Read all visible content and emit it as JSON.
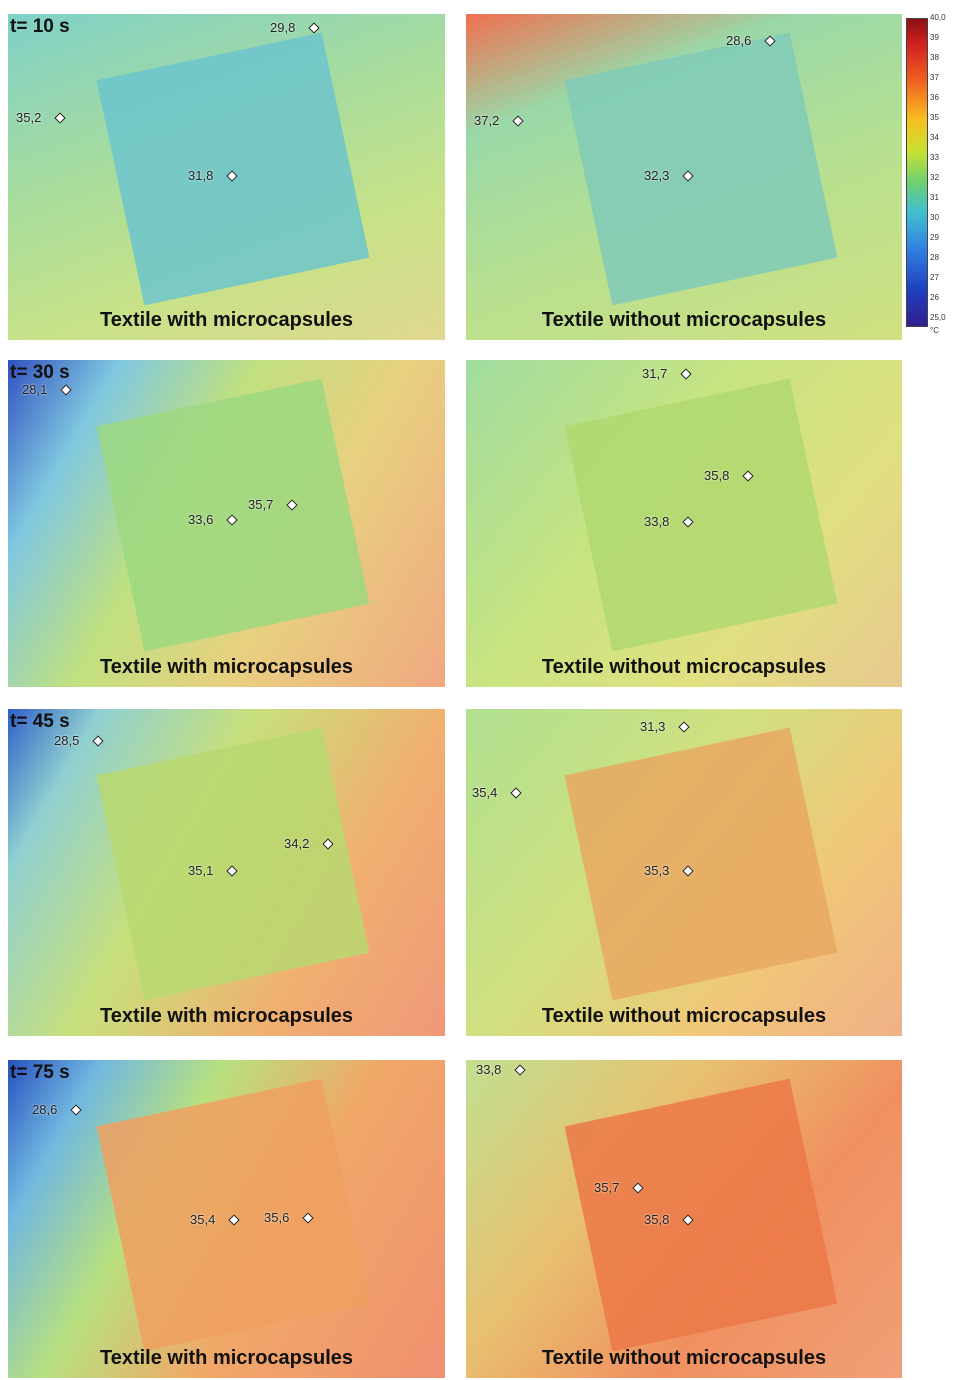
{
  "colorbar": {
    "ticks": [
      "40,0",
      "39",
      "38",
      "37",
      "36",
      "35",
      "34",
      "33",
      "32",
      "31",
      "30",
      "29",
      "28",
      "27",
      "26",
      "25,0"
    ],
    "unit": "°C"
  },
  "panels": [
    {
      "time": "t= 10 s",
      "left": {
        "caption": "Textile with microcapsules",
        "points": [
          "29,8",
          "35,2",
          "31,8"
        ]
      },
      "right": {
        "caption": "Textile without microcapsules",
        "points": [
          "28,6",
          "37,2",
          "32,3"
        ]
      }
    },
    {
      "time": "t= 30 s",
      "left": {
        "caption": "Textile with microcapsules",
        "points": [
          "28,1",
          "33,6",
          "35,7"
        ]
      },
      "right": {
        "caption": "Textile without microcapsules",
        "points": [
          "31,7",
          "35,8",
          "33,8"
        ]
      }
    },
    {
      "time": "t= 45 s",
      "left": {
        "caption": "Textile with microcapsules",
        "points": [
          "28,5",
          "35,1",
          "34,2"
        ]
      },
      "right": {
        "caption": "Textile without microcapsules",
        "points": [
          "31,3",
          "35,4",
          "35,3"
        ]
      }
    },
    {
      "time": "t= 75 s",
      "left": {
        "caption": "Textile with microcapsules",
        "points": [
          "28,6",
          "35,4",
          "35,6"
        ]
      },
      "right": {
        "caption": "Textile without microcapsules",
        "points": [
          "33,8",
          "35,7",
          "35,8"
        ]
      }
    }
  ]
}
